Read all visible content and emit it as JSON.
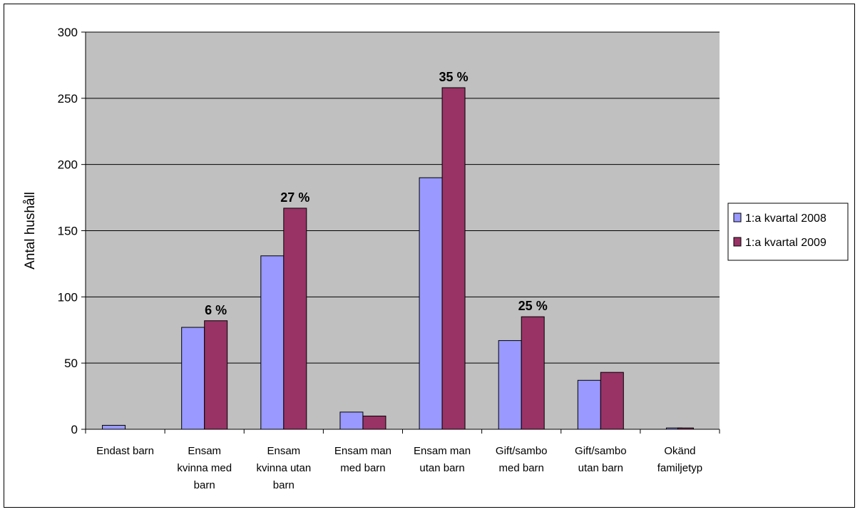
{
  "chart_data": {
    "type": "bar",
    "ylabel": "Antal hushåll",
    "xlabel": "",
    "title": "",
    "ylim": [
      0,
      300
    ],
    "yticks": [
      0,
      50,
      100,
      150,
      200,
      250,
      300
    ],
    "grid": true,
    "legend_position": "right",
    "categories": [
      [
        "Endast barn"
      ],
      [
        "Ensam",
        "kvinna med",
        "barn"
      ],
      [
        "Ensam",
        "kvinna utan",
        "barn"
      ],
      [
        "Ensam man",
        "med barn"
      ],
      [
        "Ensam man",
        "utan barn"
      ],
      [
        "Gift/sambo",
        "med barn"
      ],
      [
        "Gift/sambo",
        "utan barn"
      ],
      [
        "Okänd",
        "familjetyp"
      ]
    ],
    "series": [
      {
        "name": "1:a kvartal 2008",
        "color": "#9999ff",
        "values": [
          3,
          77,
          131,
          13,
          190,
          67,
          37,
          1
        ]
      },
      {
        "name": "1:a kvartal 2009",
        "color": "#993366",
        "values": [
          0,
          82,
          167,
          10,
          258,
          85,
          43,
          1
        ]
      }
    ],
    "data_labels": [
      {
        "category_index": 1,
        "text": "6 %"
      },
      {
        "category_index": 2,
        "text": "27 %"
      },
      {
        "category_index": 4,
        "text": "35 %"
      },
      {
        "category_index": 5,
        "text": "25 %"
      }
    ],
    "colors": {
      "plot_background": "#c0c0c0",
      "gridline": "#000000"
    }
  }
}
